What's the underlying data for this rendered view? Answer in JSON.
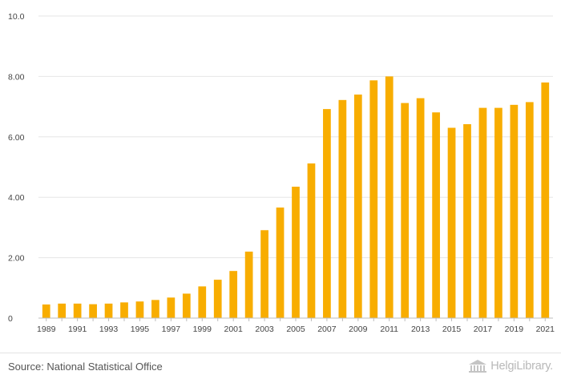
{
  "chart_data": {
    "type": "bar",
    "title": "",
    "xlabel": "",
    "ylabel": "",
    "ylim": [
      0,
      10
    ],
    "yticks": [
      "0",
      "2.00",
      "4.00",
      "6.00",
      "8.00",
      "10.0"
    ],
    "categories": [
      "1989",
      "1990",
      "1991",
      "1992",
      "1993",
      "1994",
      "1995",
      "1996",
      "1997",
      "1998",
      "1999",
      "2000",
      "2001",
      "2002",
      "2003",
      "2004",
      "2005",
      "2006",
      "2007",
      "2008",
      "2009",
      "2010",
      "2011",
      "2012",
      "2013",
      "2014",
      "2015",
      "2016",
      "2017",
      "2018",
      "2019",
      "2020",
      "2021"
    ],
    "xticks": [
      "1989",
      "1991",
      "1993",
      "1995",
      "1997",
      "1999",
      "2001",
      "2003",
      "2005",
      "2007",
      "2009",
      "2011",
      "2013",
      "2015",
      "2017",
      "2019",
      "2021"
    ],
    "values": [
      0.45,
      0.48,
      0.48,
      0.46,
      0.48,
      0.52,
      0.55,
      0.6,
      0.68,
      0.81,
      1.05,
      1.27,
      1.56,
      2.2,
      2.91,
      3.66,
      4.35,
      5.12,
      6.92,
      7.22,
      7.4,
      7.87,
      8.0,
      7.12,
      7.28,
      6.81,
      6.3,
      6.42,
      6.96,
      6.96,
      7.06,
      7.15,
      7.8
    ],
    "bar_color": "#f8ad00",
    "grid": true
  },
  "footer": {
    "source": "Source: National Statistical Office",
    "logo": "HelgiLibrary."
  }
}
